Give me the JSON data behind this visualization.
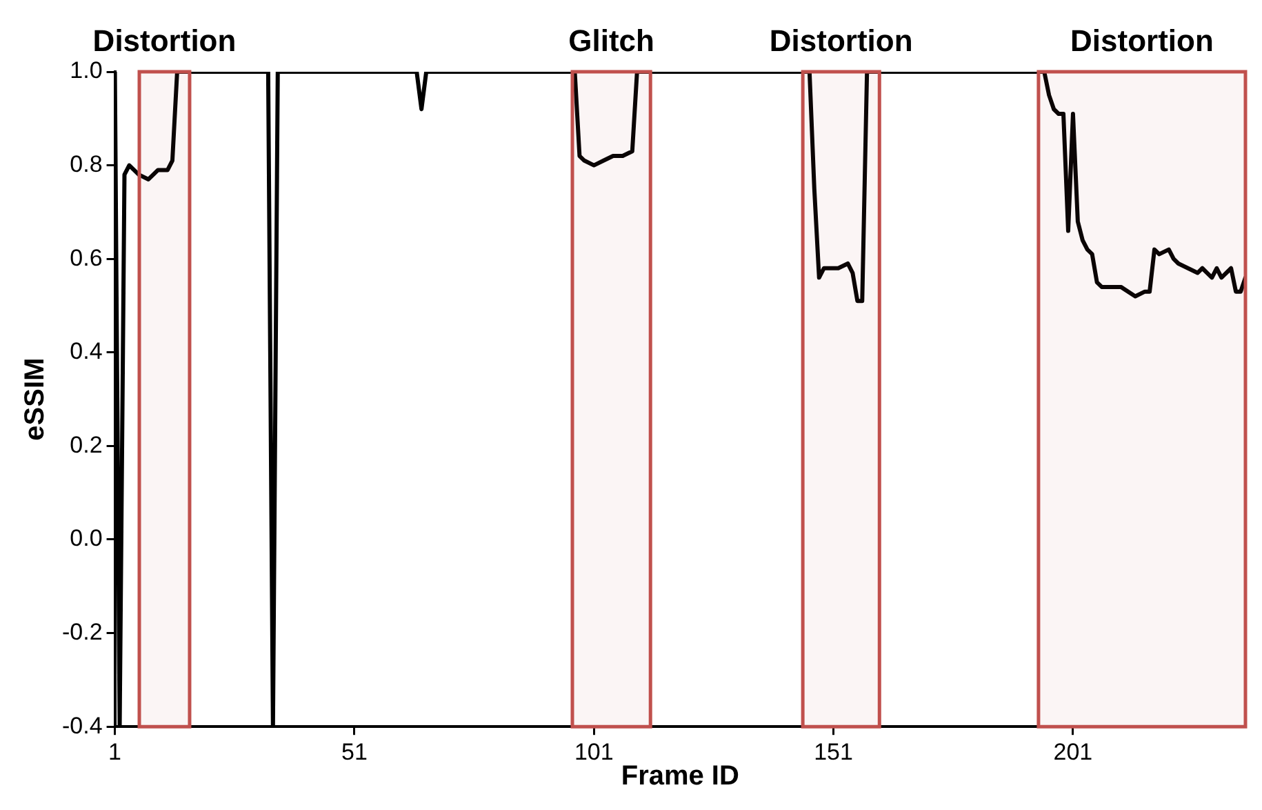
{
  "chart_data": {
    "type": "line",
    "xlabel": "Frame ID",
    "ylabel": "eSSIM",
    "xlim": [
      1,
      237
    ],
    "xticks": [
      1,
      51,
      101,
      151,
      201
    ],
    "ylim": [
      -0.4,
      1
    ],
    "yticks": [
      -0.4,
      -0.2,
      {
        "value": 0,
        "label": "0.0"
      },
      0.2,
      0.4,
      0.6,
      0.8,
      {
        "value": 1,
        "label": "1.0"
      }
    ],
    "grid": false,
    "legend": false,
    "marker": "none",
    "line_style": "solid",
    "series": [
      {
        "color": "#000000",
        "x": [
          1,
          2,
          3,
          4,
          5,
          6,
          8,
          10,
          12,
          13,
          14,
          33,
          34,
          35,
          64,
          65,
          66,
          97,
          98,
          99,
          101,
          103,
          105,
          107,
          109,
          110,
          146,
          147,
          148,
          149,
          152,
          154,
          155,
          156,
          157,
          158,
          195,
          196,
          197,
          198,
          199,
          200,
          201,
          202,
          203,
          204,
          205,
          206,
          207,
          209,
          211,
          214,
          216,
          217,
          218,
          219,
          221,
          222,
          223,
          225,
          227,
          228,
          229,
          230,
          231,
          232,
          234,
          235,
          236,
          237
        ],
        "values": [
          1,
          -0.4,
          0.78,
          0.8,
          0.79,
          0.78,
          0.77,
          0.79,
          0.79,
          0.81,
          1,
          1,
          -0.4,
          1,
          1,
          0.92,
          1,
          1,
          0.82,
          0.81,
          0.8,
          0.81,
          0.82,
          0.82,
          0.83,
          1,
          1,
          0.75,
          0.56,
          0.58,
          0.58,
          0.59,
          0.57,
          0.51,
          0.51,
          1,
          1,
          0.95,
          0.92,
          0.91,
          0.91,
          0.66,
          0.91,
          0.68,
          0.64,
          0.62,
          0.61,
          0.55,
          0.54,
          0.54,
          0.54,
          0.52,
          0.53,
          0.53,
          0.62,
          0.61,
          0.62,
          0.6,
          0.59,
          0.58,
          0.57,
          0.58,
          0.57,
          0.56,
          0.58,
          0.56,
          0.58,
          0.53,
          0.53,
          0.56
        ]
      }
    ],
    "bands": [
      {
        "axis": "x",
        "from": 6.1,
        "to": 16.6,
        "label": "Distortion",
        "color": "#c0504d"
      },
      {
        "axis": "x",
        "from": 96.5,
        "to": 112.8,
        "label": "Glitch",
        "color": "#c0504d"
      },
      {
        "axis": "x",
        "from": 144.6,
        "to": 160.6,
        "label": "Distortion",
        "color": "#c0504d"
      },
      {
        "axis": "x",
        "from": 193.8,
        "to": 237,
        "label": "Distortion",
        "color": "#c0504d"
      }
    ]
  }
}
